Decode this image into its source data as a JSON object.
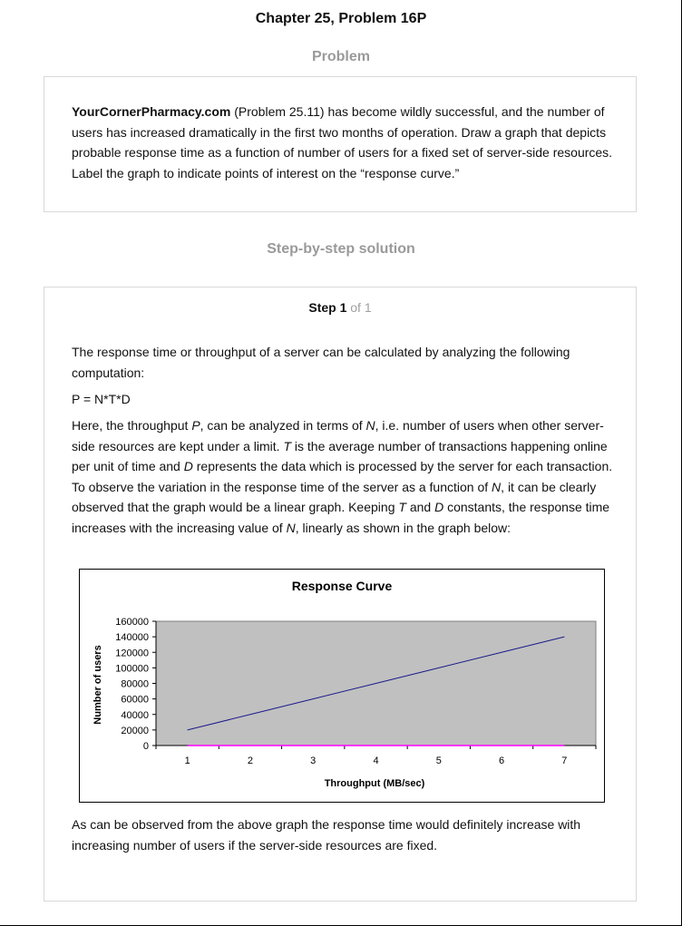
{
  "page": {
    "title": "Chapter 25, Problem 16P",
    "problem_heading": "Problem",
    "solution_heading": "Step-by-step solution"
  },
  "problem": {
    "bold_lead": "YourCornerPharmacy.com",
    "text": " (Problem 25.11) has become wildly successful, and the number of users has increased dramatically in the first two months of operation. Draw a graph that depicts probable response time as a function of number of users for a fixed set of server-side resources. Label the graph to indicate points of interest on the “response curve.”"
  },
  "step": {
    "label": "Step 1",
    "of": " of 1",
    "intro": "The response time or throughput of a server can be calculated by analyzing the following computation:",
    "formula": "P = N*T*D",
    "p2": {
      "a": "Here, the throughput ",
      "P": "P",
      "b": ", can be analyzed in terms of ",
      "N1": "N",
      "c": ", i.e. number of users when other server-side resources are kept under a limit. ",
      "T1": "T",
      "d": " is the average number of transactions happening online per unit of time and ",
      "D1": "D",
      "e": " represents the data which is processed by the server for each transaction. To observe the variation in the response time of the server as a function of ",
      "N2": "N",
      "f": ", it can be clearly observed that the graph would be a linear graph. Keeping ",
      "T2": "T",
      "g": " and ",
      "D2": "D",
      "h": " constants, the response time increases with the increasing value of ",
      "N3": "N",
      "i": ", linearly as shown in the graph below:"
    },
    "conclusion": "As can be observed from the above graph the response time would definitely increase with increasing number of users if the server-side resources are fixed."
  },
  "chart_data": {
    "type": "line",
    "title": "Response Curve",
    "xlabel": "Throughput (MB/sec)",
    "ylabel": "Number of users",
    "categories": [
      "1",
      "2",
      "3",
      "4",
      "5",
      "6",
      "7"
    ],
    "series": [
      {
        "values": [
          20000,
          40000,
          60000,
          80000,
          100000,
          120000,
          140000
        ],
        "color": "#1a1a8c"
      },
      {
        "values": [
          0,
          0,
          0,
          0,
          0,
          0,
          0
        ],
        "color": "#ff00ff"
      }
    ],
    "ylim": [
      0,
      160000
    ],
    "yticks": [
      "0",
      "20000",
      "40000",
      "60000",
      "80000",
      "100000",
      "120000",
      "140000",
      "160000"
    ],
    "plot_background": "#c0c0c0",
    "grid": false
  }
}
